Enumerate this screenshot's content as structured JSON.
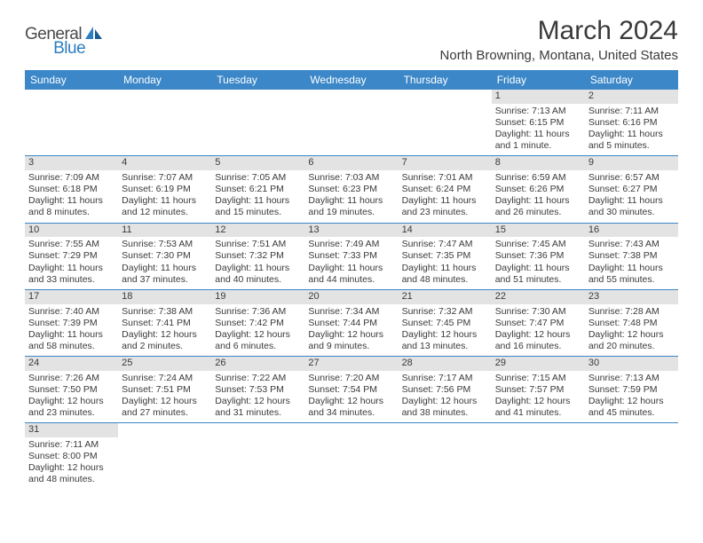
{
  "logo": {
    "general": "General",
    "blue": "Blue"
  },
  "title": "March 2024",
  "location": "North Browning, Montana, United States",
  "weekdays": [
    "Sunday",
    "Monday",
    "Tuesday",
    "Wednesday",
    "Thursday",
    "Friday",
    "Saturday"
  ],
  "colors": {
    "header_bg": "#3b87c8",
    "header_text": "#ffffff",
    "daynum_bg": "#e3e3e3",
    "text": "#3a3a3a",
    "row_border": "#3b87c8",
    "logo_blue": "#2d7dc0",
    "logo_gray": "#4a4a4a"
  },
  "weeks": [
    [
      null,
      null,
      null,
      null,
      null,
      {
        "n": "1",
        "sr": "Sunrise: 7:13 AM",
        "ss": "Sunset: 6:15 PM",
        "d1": "Daylight: 11 hours",
        "d2": "and 1 minute."
      },
      {
        "n": "2",
        "sr": "Sunrise: 7:11 AM",
        "ss": "Sunset: 6:16 PM",
        "d1": "Daylight: 11 hours",
        "d2": "and 5 minutes."
      }
    ],
    [
      {
        "n": "3",
        "sr": "Sunrise: 7:09 AM",
        "ss": "Sunset: 6:18 PM",
        "d1": "Daylight: 11 hours",
        "d2": "and 8 minutes."
      },
      {
        "n": "4",
        "sr": "Sunrise: 7:07 AM",
        "ss": "Sunset: 6:19 PM",
        "d1": "Daylight: 11 hours",
        "d2": "and 12 minutes."
      },
      {
        "n": "5",
        "sr": "Sunrise: 7:05 AM",
        "ss": "Sunset: 6:21 PM",
        "d1": "Daylight: 11 hours",
        "d2": "and 15 minutes."
      },
      {
        "n": "6",
        "sr": "Sunrise: 7:03 AM",
        "ss": "Sunset: 6:23 PM",
        "d1": "Daylight: 11 hours",
        "d2": "and 19 minutes."
      },
      {
        "n": "7",
        "sr": "Sunrise: 7:01 AM",
        "ss": "Sunset: 6:24 PM",
        "d1": "Daylight: 11 hours",
        "d2": "and 23 minutes."
      },
      {
        "n": "8",
        "sr": "Sunrise: 6:59 AM",
        "ss": "Sunset: 6:26 PM",
        "d1": "Daylight: 11 hours",
        "d2": "and 26 minutes."
      },
      {
        "n": "9",
        "sr": "Sunrise: 6:57 AM",
        "ss": "Sunset: 6:27 PM",
        "d1": "Daylight: 11 hours",
        "d2": "and 30 minutes."
      }
    ],
    [
      {
        "n": "10",
        "sr": "Sunrise: 7:55 AM",
        "ss": "Sunset: 7:29 PM",
        "d1": "Daylight: 11 hours",
        "d2": "and 33 minutes."
      },
      {
        "n": "11",
        "sr": "Sunrise: 7:53 AM",
        "ss": "Sunset: 7:30 PM",
        "d1": "Daylight: 11 hours",
        "d2": "and 37 minutes."
      },
      {
        "n": "12",
        "sr": "Sunrise: 7:51 AM",
        "ss": "Sunset: 7:32 PM",
        "d1": "Daylight: 11 hours",
        "d2": "and 40 minutes."
      },
      {
        "n": "13",
        "sr": "Sunrise: 7:49 AM",
        "ss": "Sunset: 7:33 PM",
        "d1": "Daylight: 11 hours",
        "d2": "and 44 minutes."
      },
      {
        "n": "14",
        "sr": "Sunrise: 7:47 AM",
        "ss": "Sunset: 7:35 PM",
        "d1": "Daylight: 11 hours",
        "d2": "and 48 minutes."
      },
      {
        "n": "15",
        "sr": "Sunrise: 7:45 AM",
        "ss": "Sunset: 7:36 PM",
        "d1": "Daylight: 11 hours",
        "d2": "and 51 minutes."
      },
      {
        "n": "16",
        "sr": "Sunrise: 7:43 AM",
        "ss": "Sunset: 7:38 PM",
        "d1": "Daylight: 11 hours",
        "d2": "and 55 minutes."
      }
    ],
    [
      {
        "n": "17",
        "sr": "Sunrise: 7:40 AM",
        "ss": "Sunset: 7:39 PM",
        "d1": "Daylight: 11 hours",
        "d2": "and 58 minutes."
      },
      {
        "n": "18",
        "sr": "Sunrise: 7:38 AM",
        "ss": "Sunset: 7:41 PM",
        "d1": "Daylight: 12 hours",
        "d2": "and 2 minutes."
      },
      {
        "n": "19",
        "sr": "Sunrise: 7:36 AM",
        "ss": "Sunset: 7:42 PM",
        "d1": "Daylight: 12 hours",
        "d2": "and 6 minutes."
      },
      {
        "n": "20",
        "sr": "Sunrise: 7:34 AM",
        "ss": "Sunset: 7:44 PM",
        "d1": "Daylight: 12 hours",
        "d2": "and 9 minutes."
      },
      {
        "n": "21",
        "sr": "Sunrise: 7:32 AM",
        "ss": "Sunset: 7:45 PM",
        "d1": "Daylight: 12 hours",
        "d2": "and 13 minutes."
      },
      {
        "n": "22",
        "sr": "Sunrise: 7:30 AM",
        "ss": "Sunset: 7:47 PM",
        "d1": "Daylight: 12 hours",
        "d2": "and 16 minutes."
      },
      {
        "n": "23",
        "sr": "Sunrise: 7:28 AM",
        "ss": "Sunset: 7:48 PM",
        "d1": "Daylight: 12 hours",
        "d2": "and 20 minutes."
      }
    ],
    [
      {
        "n": "24",
        "sr": "Sunrise: 7:26 AM",
        "ss": "Sunset: 7:50 PM",
        "d1": "Daylight: 12 hours",
        "d2": "and 23 minutes."
      },
      {
        "n": "25",
        "sr": "Sunrise: 7:24 AM",
        "ss": "Sunset: 7:51 PM",
        "d1": "Daylight: 12 hours",
        "d2": "and 27 minutes."
      },
      {
        "n": "26",
        "sr": "Sunrise: 7:22 AM",
        "ss": "Sunset: 7:53 PM",
        "d1": "Daylight: 12 hours",
        "d2": "and 31 minutes."
      },
      {
        "n": "27",
        "sr": "Sunrise: 7:20 AM",
        "ss": "Sunset: 7:54 PM",
        "d1": "Daylight: 12 hours",
        "d2": "and 34 minutes."
      },
      {
        "n": "28",
        "sr": "Sunrise: 7:17 AM",
        "ss": "Sunset: 7:56 PM",
        "d1": "Daylight: 12 hours",
        "d2": "and 38 minutes."
      },
      {
        "n": "29",
        "sr": "Sunrise: 7:15 AM",
        "ss": "Sunset: 7:57 PM",
        "d1": "Daylight: 12 hours",
        "d2": "and 41 minutes."
      },
      {
        "n": "30",
        "sr": "Sunrise: 7:13 AM",
        "ss": "Sunset: 7:59 PM",
        "d1": "Daylight: 12 hours",
        "d2": "and 45 minutes."
      }
    ],
    [
      {
        "n": "31",
        "sr": "Sunrise: 7:11 AM",
        "ss": "Sunset: 8:00 PM",
        "d1": "Daylight: 12 hours",
        "d2": "and 48 minutes."
      },
      null,
      null,
      null,
      null,
      null,
      null
    ]
  ]
}
